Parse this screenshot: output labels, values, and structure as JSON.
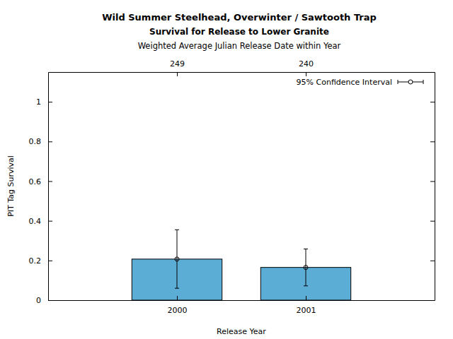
{
  "chart_data": {
    "type": "bar",
    "title": "Wild Summer Steelhead, Overwinter  / Sawtooth Trap",
    "subtitle": "Survival for Release to Lower Granite",
    "top_axis_label": "Weighted Average Julian Release Date within Year",
    "top_labels": [
      249,
      240
    ],
    "categories": [
      "2000",
      "2001"
    ],
    "values": [
      0.207,
      0.165
    ],
    "ci_low": [
      0.06,
      0.072
    ],
    "ci_high": [
      0.355,
      0.258
    ],
    "error_label": "95% Confidence Interval",
    "marker": "circle",
    "color": "#5cadd6",
    "xlabel": "Release Year",
    "ylabel": "PIT Tag Survival",
    "ylim": [
      0,
      1.15
    ],
    "yticks": [
      0,
      0.2,
      0.4,
      0.6,
      0.8,
      1
    ],
    "grid": false,
    "legend": "top-right"
  }
}
